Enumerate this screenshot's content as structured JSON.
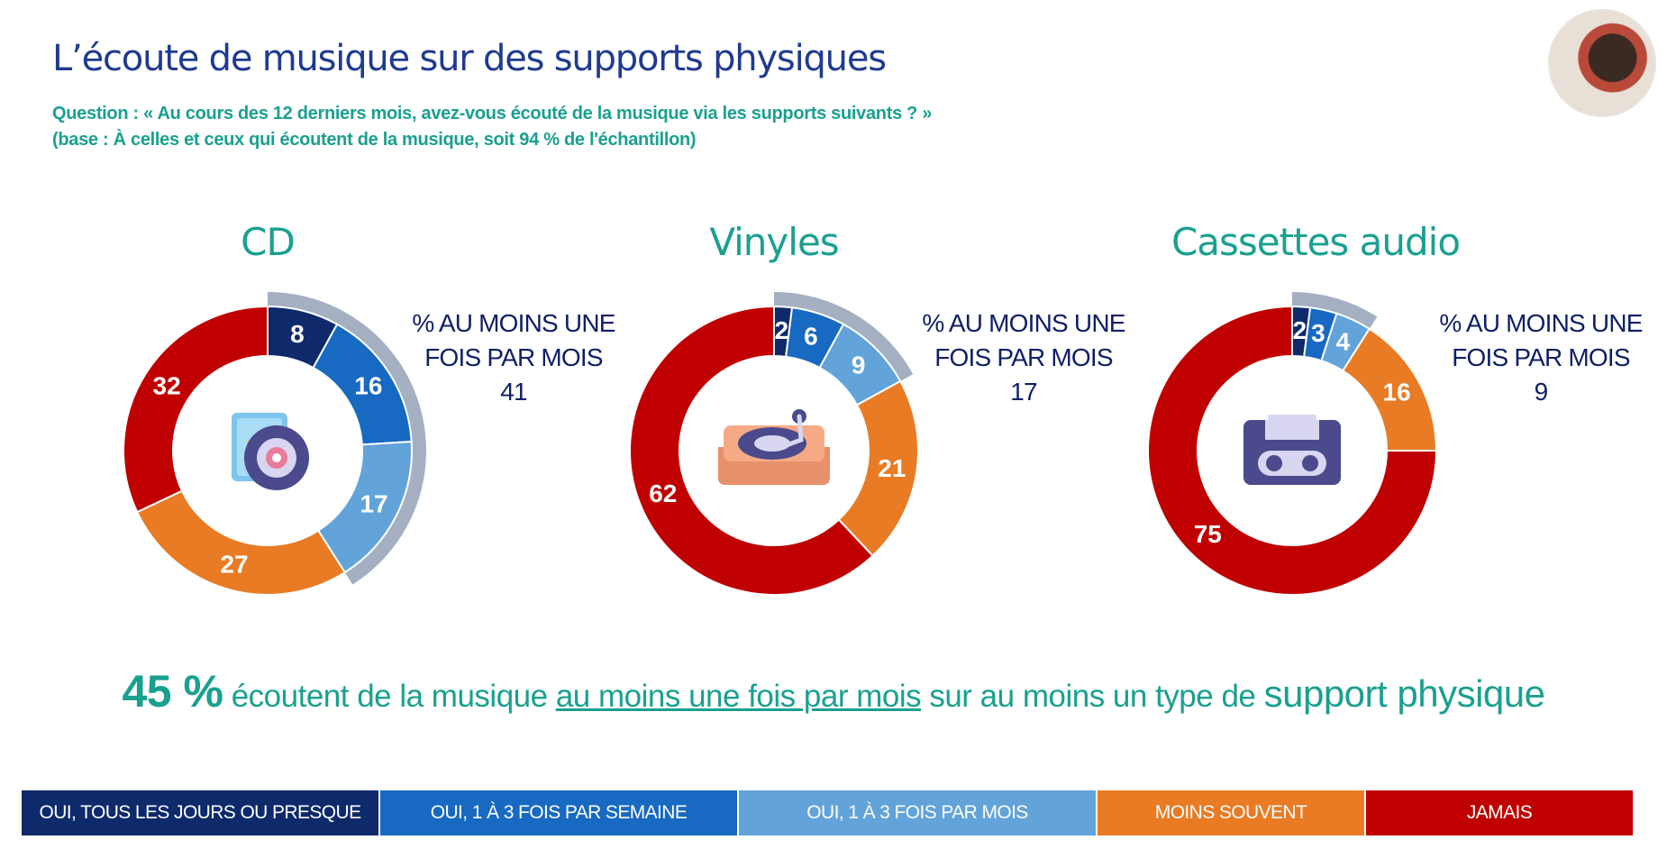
{
  "title": "L’écoute de musique sur des supports physiques",
  "question": "Question : « Au cours des 12 derniers mois, avez-vous écouté de la musique via les supports suivants ? »",
  "base": "(base : À celles et ceux qui écoutent de la musique, soit 94 % de l'échantillon)",
  "colors": {
    "daily": "#0e2a6b",
    "weekly": "#1769c2",
    "monthly": "#62a3d9",
    "less": "#e87b24",
    "never": "#c00000",
    "bracket": "#a4b0c2",
    "teal": "#1aa08f",
    "navy": "#0f1f66"
  },
  "chart_data": [
    {
      "type": "donut",
      "title": "CD",
      "icon": "cd-case-icon",
      "categories": [
        "OUI, TOUS LES JOURS OU PRESQUE",
        "OUI, 1 À 3 FOIS PAR SEMAINE",
        "OUI, 1 À 3 FOIS PAR MOIS",
        "MOINS SOUVENT",
        "JAMAIS"
      ],
      "values": [
        8,
        16,
        17,
        27,
        32
      ],
      "annotation_line1": "% AU MOINS UNE",
      "annotation_line2": "FOIS PAR MOIS",
      "annotation_value": "41"
    },
    {
      "type": "donut",
      "title": "Vinyles",
      "icon": "turntable-icon",
      "categories": [
        "OUI, TOUS LES JOURS OU PRESQUE",
        "OUI, 1 À 3 FOIS PAR SEMAINE",
        "OUI, 1 À 3 FOIS PAR MOIS",
        "MOINS SOUVENT",
        "JAMAIS"
      ],
      "values": [
        2,
        6,
        9,
        21,
        62
      ],
      "annotation_line1": "% AU MOINS UNE",
      "annotation_line2": "FOIS PAR MOIS",
      "annotation_value": "17"
    },
    {
      "type": "donut",
      "title": "Cassettes audio",
      "icon": "cassette-icon",
      "categories": [
        "OUI, TOUS LES JOURS OU PRESQUE",
        "OUI, 1 À 3 FOIS PAR SEMAINE",
        "OUI, 1 À 3 FOIS PAR MOIS",
        "MOINS SOUVENT",
        "JAMAIS"
      ],
      "values": [
        2,
        3,
        4,
        16,
        75
      ],
      "annotation_line1": "% AU MOINS UNE",
      "annotation_line2": "FOIS PAR MOIS",
      "annotation_value": "9"
    }
  ],
  "headline": {
    "pct": "45 %",
    "text1": " écoutent de la musique ",
    "underlined": "au moins une fois par mois",
    "text2": " sur au moins un type de ",
    "emphasis": "support physique"
  },
  "legend": [
    {
      "label": "OUI, TOUS LES JOURS OU PRESQUE",
      "color": "#0e2a6b"
    },
    {
      "label": "OUI, 1 À 3 FOIS PAR SEMAINE",
      "color": "#1769c2"
    },
    {
      "label": "OUI, 1 À 3 FOIS PAR MOIS",
      "color": "#62a3d9"
    },
    {
      "label": "MOINS SOUVENT",
      "color": "#e87b24"
    },
    {
      "label": "JAMAIS",
      "color": "#c00000"
    }
  ]
}
